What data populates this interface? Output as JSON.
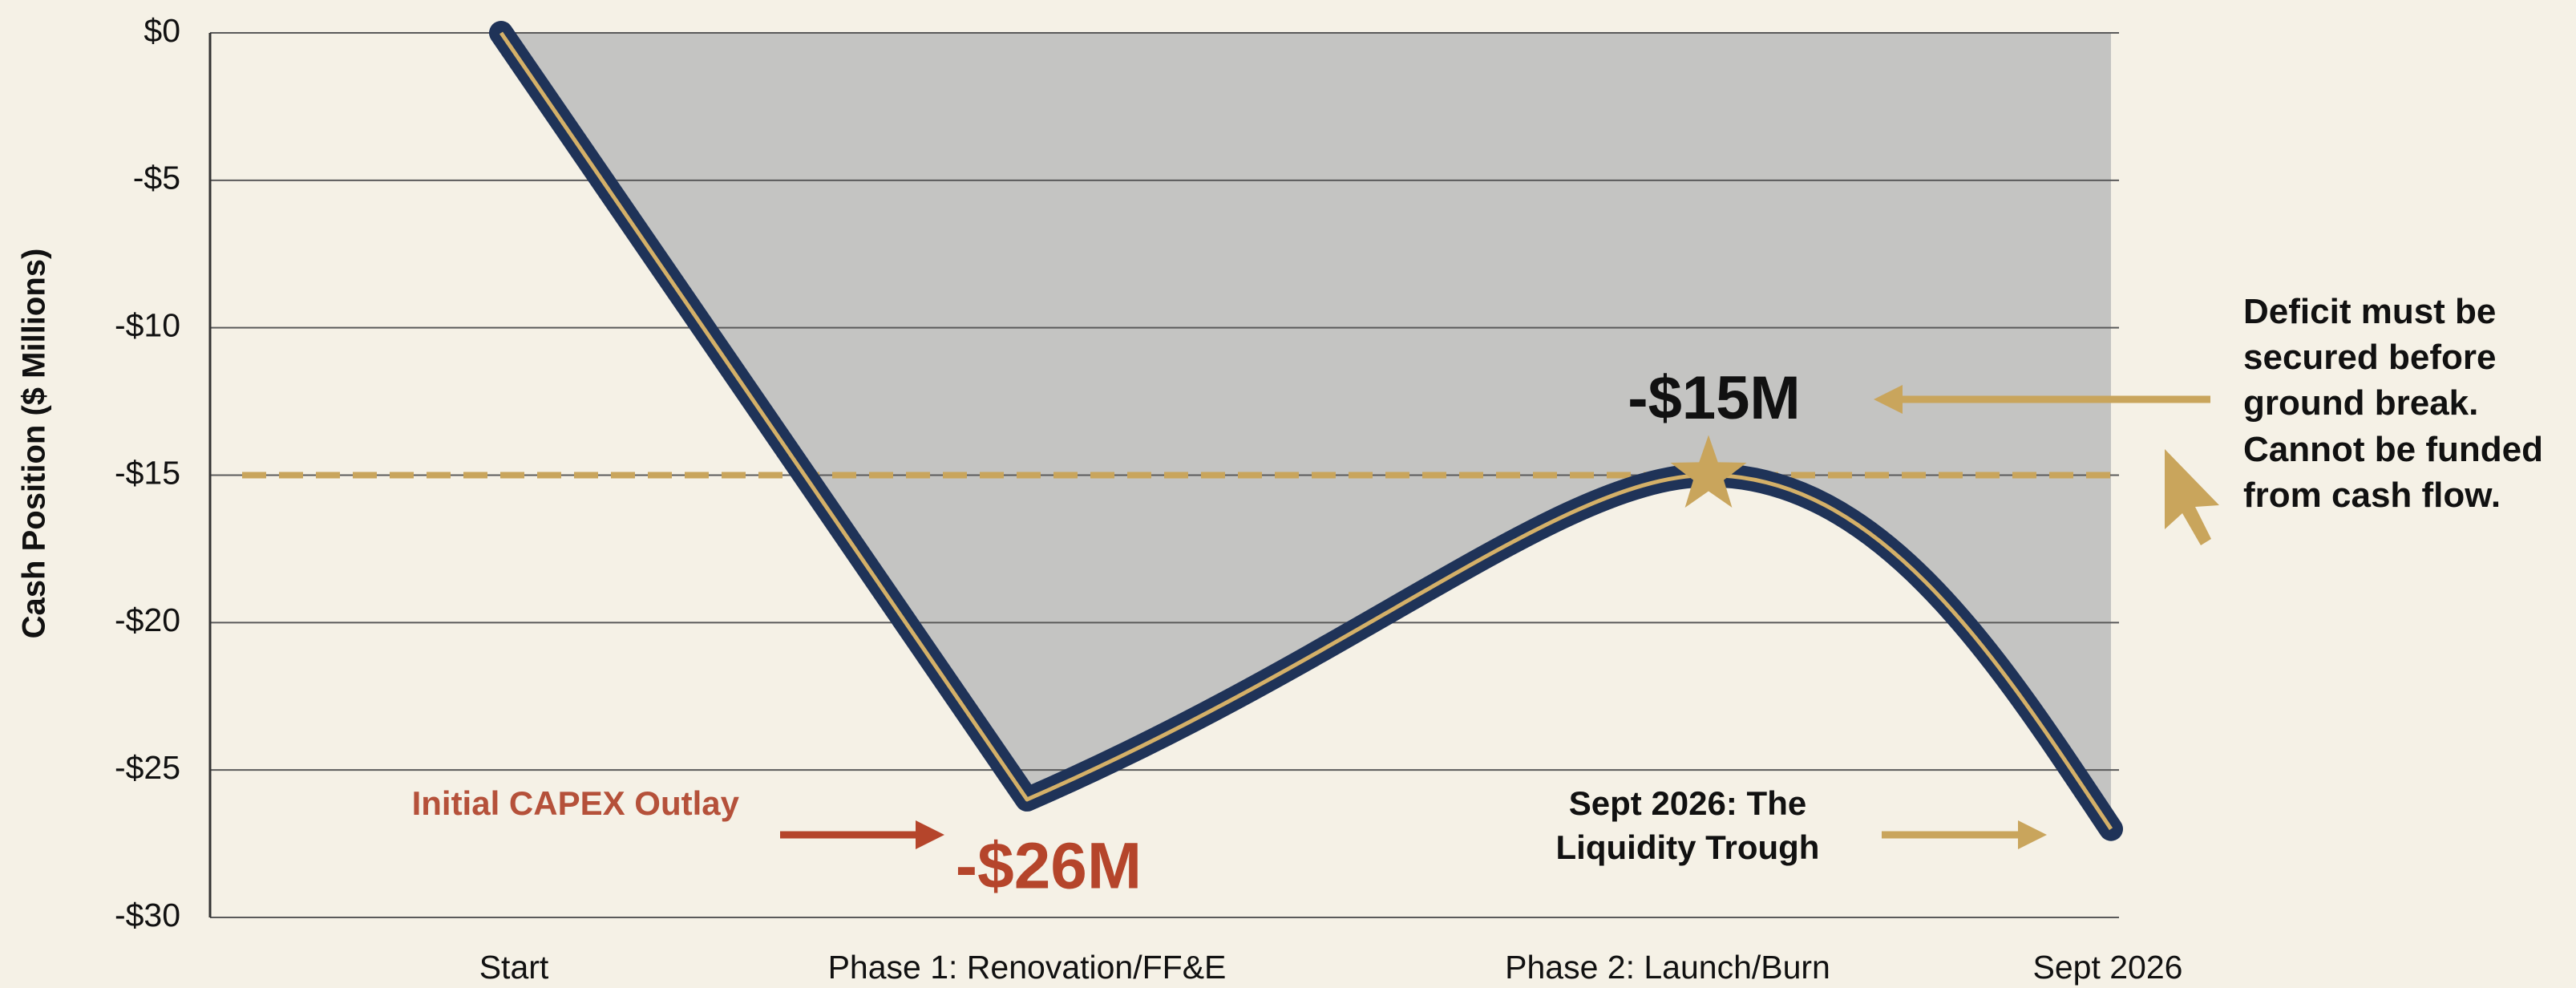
{
  "chart_data": {
    "type": "line",
    "y_label": "Cash Position ($ Millions)",
    "categories": [
      "Start",
      "Phase 1: Renovation/FF&E",
      "Phase 2: Launch/Burn",
      "Sept 2026"
    ],
    "series": [
      {
        "name": "Cash Position",
        "color": "#1f3358",
        "values": [
          0,
          -26,
          -15,
          -27
        ]
      }
    ],
    "value_labels": [
      null,
      "-$26M",
      "-$15M",
      null
    ],
    "ylim": [
      -30,
      0
    ],
    "yticks": [
      {
        "value": 0,
        "label": "$0"
      },
      {
        "value": -5,
        "label": "-$5"
      },
      {
        "value": -10,
        "label": "-$10"
      },
      {
        "value": -15,
        "label": "-$15"
      },
      {
        "value": -20,
        "label": "-$20"
      },
      {
        "value": -25,
        "label": "-$25"
      },
      {
        "value": -30,
        "label": "-$30"
      }
    ],
    "reference_line": -15,
    "grid": true,
    "annotations": [
      "Initial CAPEX Outlay",
      "Sept 2026: The Liquidity Trough",
      "Deficit must be secured before ground break. Cannot be funded from cash flow."
    ]
  }
}
